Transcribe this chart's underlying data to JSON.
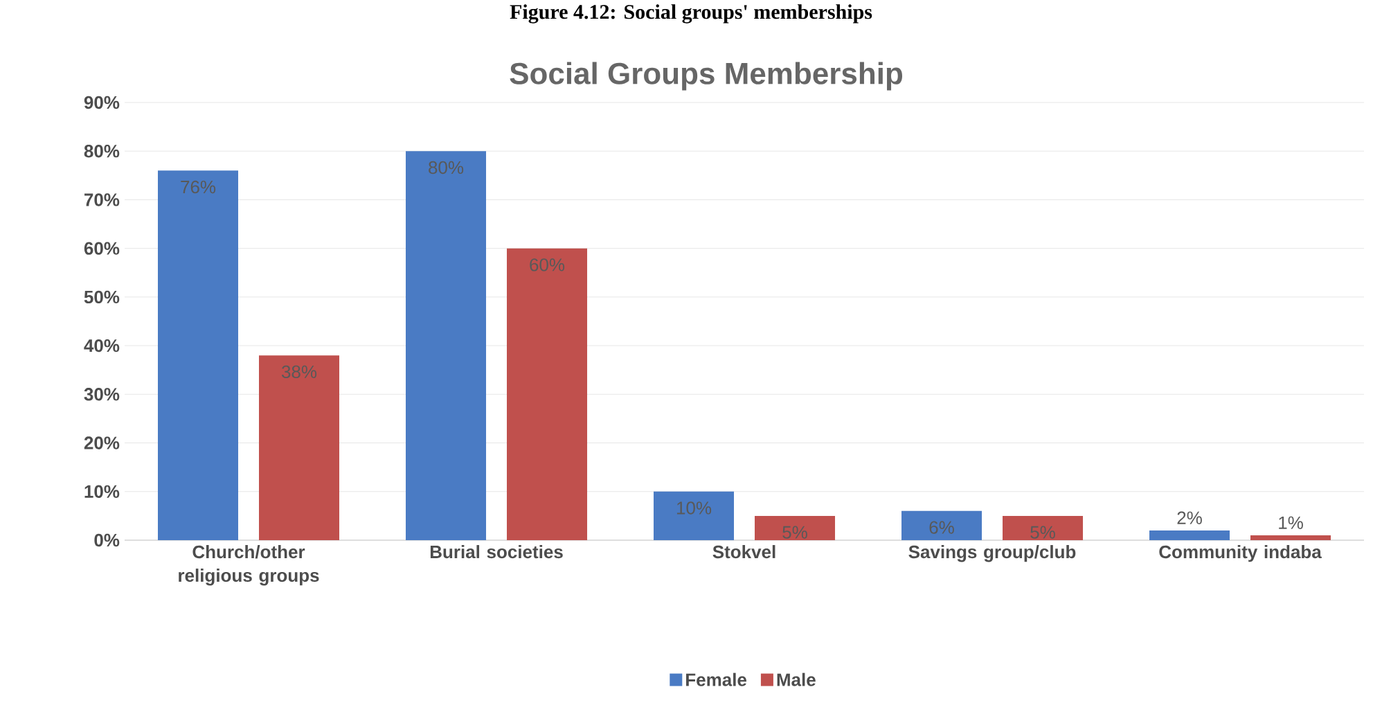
{
  "chart_data": {
    "type": "bar",
    "title": "Social Groups Membership",
    "annotations": [
      "Figure 4.12: Social groups' memberships"
    ],
    "categories": [
      "Church/other religious groups",
      "Burial societies",
      "Stokvel",
      "Savings group/club",
      "Community indaba"
    ],
    "series": [
      {
        "name": "Female",
        "color": "#4a7bc4",
        "values": [
          76,
          80,
          10,
          6,
          2
        ],
        "value_labels": [
          "76%",
          "80%",
          "10%",
          "6%",
          "2%"
        ]
      },
      {
        "name": "Male",
        "color": "#c0504d",
        "values": [
          38,
          60,
          5,
          5,
          1
        ],
        "value_labels": [
          "38%",
          "60%",
          "5%",
          "5%",
          "1%"
        ]
      }
    ],
    "ylim": [
      0,
      90
    ],
    "yticks": [
      {
        "value": 0,
        "label": "0%"
      },
      {
        "value": 10,
        "label": "10%"
      },
      {
        "value": 20,
        "label": "20%"
      },
      {
        "value": 30,
        "label": "30%"
      },
      {
        "value": 40,
        "label": "40%"
      },
      {
        "value": 50,
        "label": "50%"
      },
      {
        "value": 60,
        "label": "60%"
      },
      {
        "value": 70,
        "label": "70%"
      },
      {
        "value": 80,
        "label": "80%"
      },
      {
        "value": 90,
        "label": "90%"
      }
    ],
    "grid": "y",
    "legend": "bottom"
  }
}
